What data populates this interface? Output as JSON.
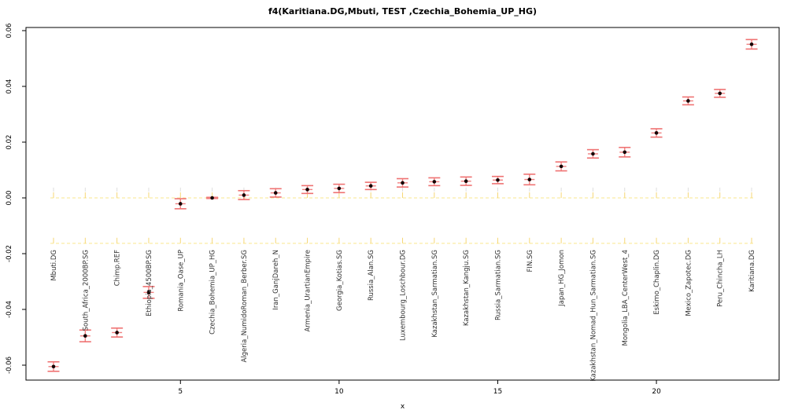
{
  "title": "f4(Karitiana.DG,Mbuti, TEST ,Czechia_Bohemia_UP_HG)",
  "chart_data": {
    "type": "scatter",
    "title": "f4(Karitiana.DG,Mbuti, TEST ,Czechia_Bohemia_UP_HG)",
    "xlabel": "x",
    "ylabel": "",
    "ylim": [
      -0.065,
      0.062
    ],
    "yticks": [
      0.06,
      0.04,
      0.02,
      0.0,
      -0.02,
      -0.04,
      -0.06
    ],
    "ytick_labels": [
      "0.06",
      "0.04",
      "0.02",
      "0.00",
      "-0.02",
      "-0.04",
      "-0.06"
    ],
    "xticks": [
      5,
      10,
      15,
      20
    ],
    "xtick_labels": [
      "5",
      "10",
      "15",
      "20"
    ],
    "grid": false,
    "legend_position": "none",
    "marker_style": "black dot with red error bars and caps",
    "reference_series": [
      {
        "name": "zero-line",
        "y": 0.0,
        "se": 0.002,
        "style": "dashed"
      },
      {
        "name": "lower-dashed-line",
        "y": -0.0163,
        "se": 0.002,
        "style": "dashed"
      }
    ],
    "aux_tick_series": {
      "name": "faint-grey-ticks",
      "y": 0.003,
      "se": 0.0007
    },
    "points": [
      {
        "x": 1,
        "label": "Mbuti.DG",
        "y": -0.0605,
        "se": 0.0017
      },
      {
        "x": 2,
        "label": "South_Africa_2000BP.SG",
        "y": -0.0495,
        "se": 0.0021
      },
      {
        "x": 3,
        "label": "Chimp.REF",
        "y": -0.0483,
        "se": 0.0016
      },
      {
        "x": 4,
        "label": "Ethiopia_4500BP.SG",
        "y": -0.0339,
        "se": 0.0021
      },
      {
        "x": 5,
        "label": "Romania_Oase_UP",
        "y": -0.0021,
        "se": 0.0018
      },
      {
        "x": 6,
        "label": "Czechia_Bohemia_UP_HG",
        "y": 0.0,
        "se": 0.0002
      },
      {
        "x": 7,
        "label": "Algeria_NumidoRoman_Berber.SG",
        "y": 0.001,
        "se": 0.0016
      },
      {
        "x": 8,
        "label": "Iran_GanjDareh_N",
        "y": 0.0018,
        "se": 0.0015
      },
      {
        "x": 9,
        "label": "Armenia_UrartianEmpire",
        "y": 0.003,
        "se": 0.0014
      },
      {
        "x": 10,
        "label": "Georgia_Kotias.SG",
        "y": 0.0034,
        "se": 0.0015
      },
      {
        "x": 11,
        "label": "Russia_Alan.SG",
        "y": 0.0043,
        "se": 0.0013
      },
      {
        "x": 12,
        "label": "Luxembourg_Loschbour.DG",
        "y": 0.0054,
        "se": 0.0015
      },
      {
        "x": 13,
        "label": "Kazakhstan_Sarmatian.SG",
        "y": 0.0058,
        "se": 0.0014
      },
      {
        "x": 14,
        "label": "Kazakhstan_Kangju.SG",
        "y": 0.006,
        "se": 0.0015
      },
      {
        "x": 15,
        "label": "Russia_Sarmatian.SG",
        "y": 0.0064,
        "se": 0.0013
      },
      {
        "x": 16,
        "label": "FIN.SG",
        "y": 0.0066,
        "se": 0.0019
      },
      {
        "x": 17,
        "label": "Japan_HG_Jomon",
        "y": 0.0113,
        "se": 0.0016
      },
      {
        "x": 18,
        "label": "Kazakhstan_Nomad_Hun_Sarmatian.SG",
        "y": 0.0158,
        "se": 0.0015
      },
      {
        "x": 19,
        "label": "Mongolia_LBA_CenterWest_4",
        "y": 0.0164,
        "se": 0.0017
      },
      {
        "x": 20,
        "label": "Eskimo_Chaplin.DG",
        "y": 0.0233,
        "se": 0.0015
      },
      {
        "x": 21,
        "label": "Mexico_Zapotec.DG",
        "y": 0.0348,
        "se": 0.0014
      },
      {
        "x": 22,
        "label": "Peru_Chincha_LH",
        "y": 0.0375,
        "se": 0.0014
      },
      {
        "x": 23,
        "label": "Karitiana.DG",
        "y": 0.0551,
        "se": 0.0017
      }
    ]
  },
  "colors": {
    "error_bar": "#f08080",
    "error_bar_cap": "#ef7272",
    "point": "#140000",
    "reference_line": "#fae78e",
    "reference_tick": "#f6d776",
    "aux_tick": "#dedede",
    "axis": "#000000",
    "label_text": "#303030"
  }
}
